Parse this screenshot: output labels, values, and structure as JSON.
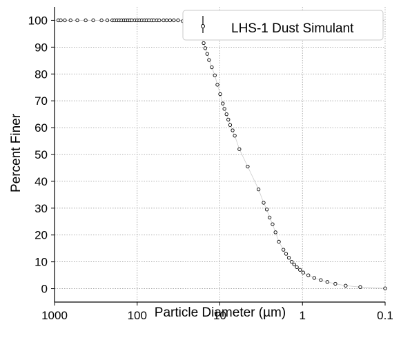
{
  "chart_data": {
    "type": "scatter",
    "xlabel": "Particle Diameter (µm)",
    "ylabel": "Percent Finer",
    "x_scale": "log",
    "x_reversed": true,
    "xlim": [
      1000,
      0.1
    ],
    "ylim": [
      -5,
      105
    ],
    "x_ticks": [
      "1000",
      "100",
      "10",
      "1",
      "0.1"
    ],
    "y_ticks": [
      "0",
      "10",
      "20",
      "30",
      "40",
      "50",
      "60",
      "70",
      "80",
      "90",
      "100"
    ],
    "grid": true,
    "legend_position": "top-right",
    "series": [
      {
        "name": "LHS-1 Dust Simulant",
        "marker": "open-circle",
        "color": "#000000",
        "points": [
          {
            "x": 900,
            "y": 100
          },
          {
            "x": 840,
            "y": 100
          },
          {
            "x": 750,
            "y": 100
          },
          {
            "x": 640,
            "y": 100
          },
          {
            "x": 530,
            "y": 100
          },
          {
            "x": 420,
            "y": 100
          },
          {
            "x": 340,
            "y": 100
          },
          {
            "x": 270,
            "y": 100
          },
          {
            "x": 230,
            "y": 100
          },
          {
            "x": 200,
            "y": 100
          },
          {
            "x": 188,
            "y": 100
          },
          {
            "x": 176,
            "y": 100
          },
          {
            "x": 165,
            "y": 100
          },
          {
            "x": 155,
            "y": 100
          },
          {
            "x": 145,
            "y": 100
          },
          {
            "x": 137,
            "y": 100
          },
          {
            "x": 129,
            "y": 100
          },
          {
            "x": 122,
            "y": 100
          },
          {
            "x": 116,
            "y": 100
          },
          {
            "x": 107,
            "y": 100
          },
          {
            "x": 100,
            "y": 100
          },
          {
            "x": 94,
            "y": 100
          },
          {
            "x": 88,
            "y": 100
          },
          {
            "x": 82,
            "y": 100
          },
          {
            "x": 77,
            "y": 100
          },
          {
            "x": 72,
            "y": 100
          },
          {
            "x": 67,
            "y": 100
          },
          {
            "x": 63,
            "y": 100
          },
          {
            "x": 58,
            "y": 100
          },
          {
            "x": 54,
            "y": 100
          },
          {
            "x": 48,
            "y": 100
          },
          {
            "x": 44,
            "y": 100
          },
          {
            "x": 40,
            "y": 100
          },
          {
            "x": 36,
            "y": 100
          },
          {
            "x": 32,
            "y": 100
          },
          {
            "x": 28,
            "y": 99.7
          },
          {
            "x": 25,
            "y": 99.3
          },
          {
            "x": 22,
            "y": 98.5
          },
          {
            "x": 19.5,
            "y": 97
          },
          {
            "x": 17.3,
            "y": 95.2
          },
          {
            "x": 16.5,
            "y": 93.5
          },
          {
            "x": 15.7,
            "y": 91.5
          },
          {
            "x": 15,
            "y": 89.6
          },
          {
            "x": 14.2,
            "y": 87.5
          },
          {
            "x": 13.5,
            "y": 85.2
          },
          {
            "x": 12.5,
            "y": 82.5
          },
          {
            "x": 11.5,
            "y": 79.5
          },
          {
            "x": 10.7,
            "y": 76
          },
          {
            "x": 9.9,
            "y": 72.5
          },
          {
            "x": 9.2,
            "y": 69
          },
          {
            "x": 8.8,
            "y": 67
          },
          {
            "x": 8.3,
            "y": 65
          },
          {
            "x": 7.9,
            "y": 63
          },
          {
            "x": 7.5,
            "y": 61
          },
          {
            "x": 7.0,
            "y": 59
          },
          {
            "x": 6.6,
            "y": 57
          },
          {
            "x": 5.8,
            "y": 52
          },
          {
            "x": 4.6,
            "y": 45.5
          },
          {
            "x": 3.4,
            "y": 37
          },
          {
            "x": 2.95,
            "y": 32
          },
          {
            "x": 2.7,
            "y": 29.5
          },
          {
            "x": 2.5,
            "y": 26.5
          },
          {
            "x": 2.3,
            "y": 24
          },
          {
            "x": 2.12,
            "y": 21
          },
          {
            "x": 1.93,
            "y": 17.5
          },
          {
            "x": 1.7,
            "y": 14.5
          },
          {
            "x": 1.58,
            "y": 13
          },
          {
            "x": 1.46,
            "y": 11.5
          },
          {
            "x": 1.35,
            "y": 10
          },
          {
            "x": 1.26,
            "y": 9
          },
          {
            "x": 1.17,
            "y": 8
          },
          {
            "x": 1.07,
            "y": 7
          },
          {
            "x": 0.98,
            "y": 6
          },
          {
            "x": 0.85,
            "y": 5
          },
          {
            "x": 0.72,
            "y": 4
          },
          {
            "x": 0.6,
            "y": 3.2
          },
          {
            "x": 0.5,
            "y": 2.5
          },
          {
            "x": 0.4,
            "y": 1.8
          },
          {
            "x": 0.3,
            "y": 1.1
          },
          {
            "x": 0.2,
            "y": 0.6
          },
          {
            "x": 0.1,
            "y": 0.1
          }
        ]
      }
    ]
  }
}
